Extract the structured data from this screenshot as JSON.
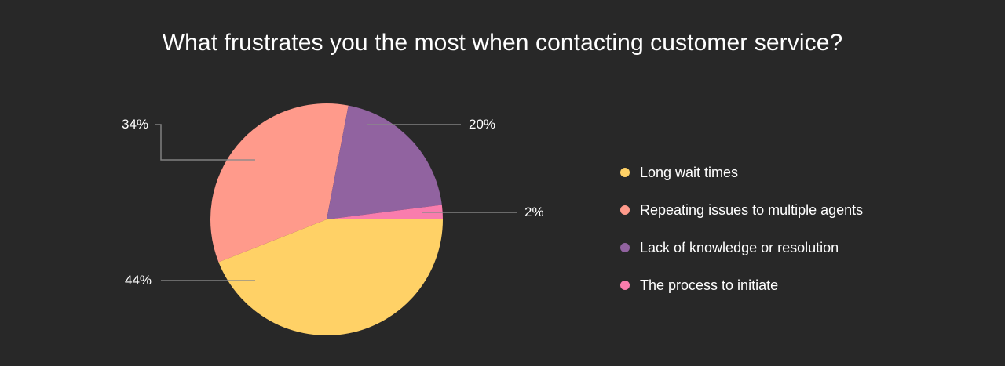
{
  "title": "What frustrates you the most when contacting customer service?",
  "background": "#282828",
  "chart_data": {
    "type": "pie",
    "title": "What frustrates you the most when contacting customer service?",
    "categories": [
      "Long wait times",
      "Repeating issues to multiple agents",
      "Lack of knowledge or resolution",
      "The process to initiate"
    ],
    "values": [
      44,
      34,
      20,
      2
    ],
    "colors": [
      "#FFD166",
      "#FF9A8B",
      "#9163A0",
      "#F97DAD"
    ],
    "data_labels": [
      "44%",
      "34%",
      "20%",
      "2%"
    ],
    "start_angle": "3 o'clock, clockwise",
    "legend_position": "right"
  },
  "labels": {
    "long_wait": "44%",
    "repeating": "34%",
    "lack": "20%",
    "process": "2%"
  },
  "legend": [
    {
      "label": "Long wait times",
      "color": "#FFD166"
    },
    {
      "label": "Repeating issues to multiple agents",
      "color": "#FF9A8B"
    },
    {
      "label": "Lack of knowledge or resolution",
      "color": "#9163A0"
    },
    {
      "label": "The process to initiate",
      "color": "#F97DAD"
    }
  ]
}
